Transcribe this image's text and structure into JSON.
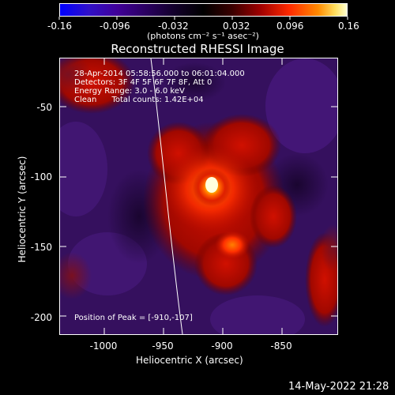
{
  "colorbar": {
    "tick_labels": [
      "-0.16",
      "-0.096",
      "-0.032",
      "0.032",
      "0.096",
      "0.16"
    ],
    "units_text": "(photons cm⁻² s⁻¹ asec⁻²)",
    "colors": [
      "#0000ff",
      "#4000a0",
      "#1a0033",
      "#000000",
      "#300000",
      "#a00000",
      "#ff2000",
      "#ff7000",
      "#ffc000",
      "#ffffb0"
    ]
  },
  "image": {
    "title": "Reconstructed RHESSI Image",
    "annotations": {
      "time_range": "28-Apr-2014 05:58:56.000 to 06:01:04.000",
      "detectors": "Detectors: 3F 4F 5F 6F 7F 8F, Att 0",
      "energy_range": "Energy Range: 3.0 - 6.0 keV",
      "clean_counts": "Clean      Total counts: 1.42E+04",
      "peak_position": "Position of Peak = [-910,-107]"
    },
    "x_axis": {
      "label": "Heliocentric X (arcsec)",
      "tick_labels": [
        "-1000",
        "-950",
        "-900",
        "-850"
      ]
    },
    "y_axis": {
      "label": "Heliocentric Y (arcsec)",
      "tick_labels": [
        "-50",
        "-100",
        "-150",
        "-200"
      ]
    },
    "footer_timestamp": "14-May-2022 21:28"
  }
}
